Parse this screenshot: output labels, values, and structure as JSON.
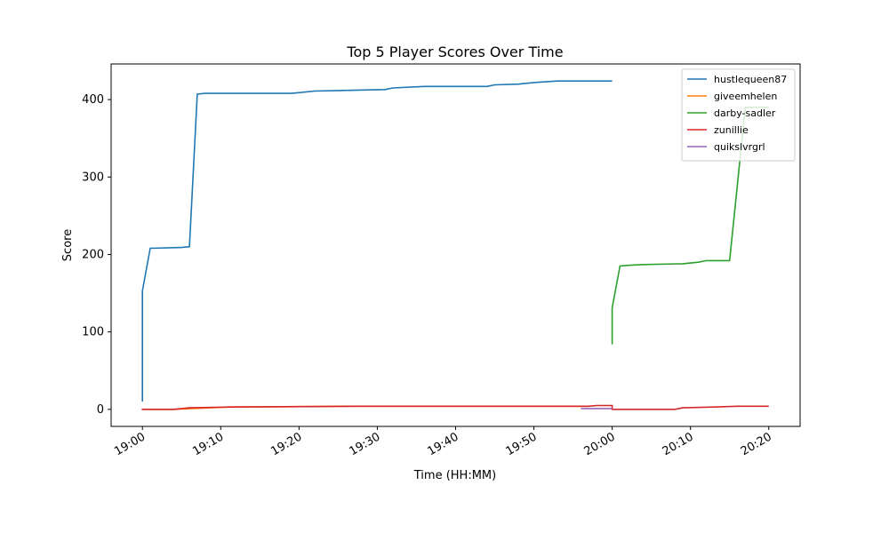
{
  "chart_data": {
    "type": "line",
    "title": "Top 5 Player Scores Over Time",
    "x_label": "Time (HH:MM)",
    "y_label": "Score",
    "xlim": [
      "18:56",
      "20:24"
    ],
    "xticks": [
      "19:00",
      "19:10",
      "19:20",
      "19:30",
      "19:40",
      "19:50",
      "20:00",
      "20:10",
      "20:20"
    ],
    "ylim": [
      -22,
      446
    ],
    "yticks": [
      0,
      100,
      200,
      300,
      400
    ],
    "legend": "upper right",
    "grid": false,
    "series": [
      {
        "name": "hustlequeen87",
        "color": "#1f77b4",
        "x": [
          "19:00",
          "19:00",
          "19:01",
          "19:05",
          "19:06",
          "19:07",
          "19:08",
          "19:19",
          "19:20",
          "19:22",
          "19:27",
          "19:31",
          "19:32",
          "19:36",
          "19:44",
          "19:45",
          "19:48",
          "19:50",
          "19:53",
          "20:00"
        ],
        "values": [
          10,
          153,
          208,
          209,
          210,
          407,
          408,
          408,
          409,
          411,
          412,
          413,
          415,
          417,
          417,
          419,
          420,
          422,
          424,
          424
        ]
      },
      {
        "name": "giveemhelen",
        "color": "#ff7f0e",
        "x": [
          "19:00",
          "19:04",
          "19:11",
          "19:27",
          "19:57"
        ],
        "values": [
          0,
          0,
          3,
          4,
          4
        ]
      },
      {
        "name": "darby-sadler",
        "color": "#2ca02c",
        "x": [
          "20:00",
          "20:00",
          "20:01",
          "20:02",
          "20:04",
          "20:09",
          "20:11",
          "20:12",
          "20:15",
          "20:17",
          "20:20"
        ],
        "values": [
          84,
          131,
          185,
          186,
          187,
          188,
          190,
          192,
          192,
          390,
          390
        ]
      },
      {
        "name": "zunillie",
        "color": "#d62728",
        "x": [
          "19:00",
          "19:00",
          "19:04",
          "19:05",
          "19:06",
          "19:11",
          "19:27",
          "19:57",
          "19:58",
          "20:00",
          "20:00",
          "20:08",
          "20:09",
          "20:13",
          "20:16",
          "20:20"
        ],
        "values": [
          1,
          0,
          0,
          1,
          2,
          3,
          4,
          4,
          5,
          5,
          0,
          0,
          2,
          3,
          4,
          4
        ]
      },
      {
        "name": "quikslvrgrl",
        "color": "#9467bd",
        "x": [
          "19:56",
          "20:00"
        ],
        "values": [
          1,
          1
        ]
      }
    ]
  }
}
